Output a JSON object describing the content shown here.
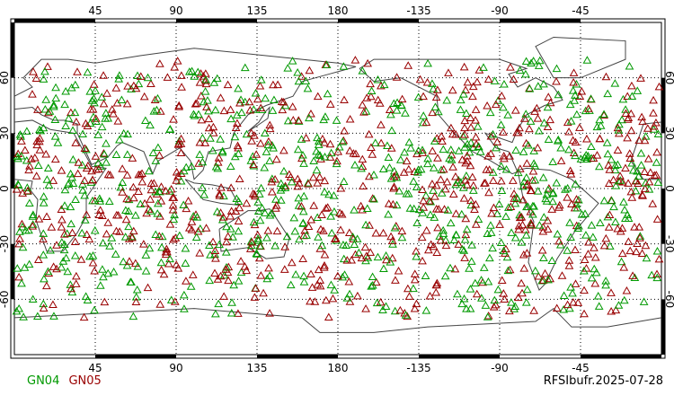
{
  "map": {
    "projection": "cylindrical-equidistant",
    "lon_ticks_top": [
      "45",
      "90",
      "135",
      "180",
      "-135",
      "-90",
      "-45"
    ],
    "lon_ticks_bottom": [
      "45",
      "90",
      "135",
      "180",
      "-135",
      "-90",
      "-45"
    ],
    "lat_ticks_left": [
      "60",
      "30",
      "0",
      "-30",
      "-60"
    ],
    "lat_ticks_right": [
      "60",
      "30",
      "0",
      "-30",
      "-60"
    ],
    "grid": "dotted",
    "marker": "triangle-outline"
  },
  "legend": {
    "items": [
      {
        "label": "GN04",
        "color": "#009900"
      },
      {
        "label": "GN05",
        "color": "#990000"
      }
    ]
  },
  "title": "RFSIbufr.2025-07-28"
}
